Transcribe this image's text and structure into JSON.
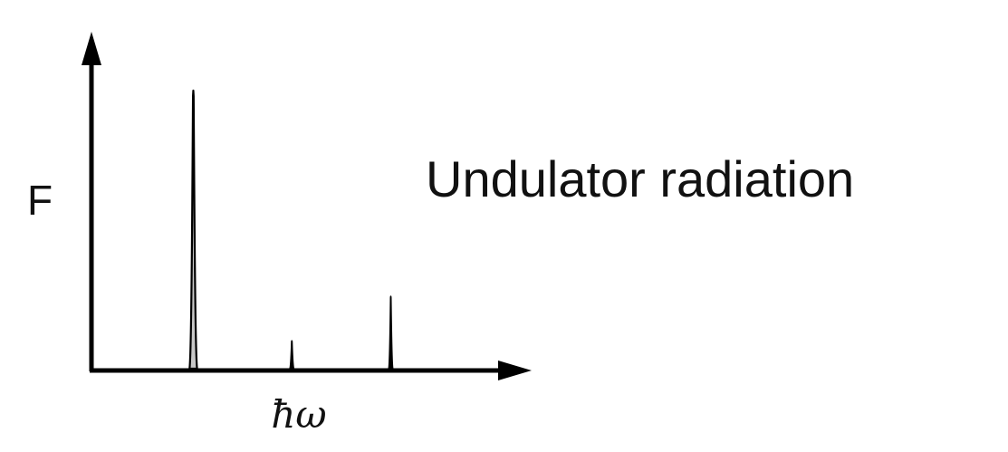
{
  "chart_data": {
    "type": "line",
    "title": "Undulator radiation",
    "ylabel": "F",
    "xlabel": "ħω",
    "xlim": [
      0,
      10
    ],
    "ylim": [
      0,
      10
    ],
    "peaks": [
      {
        "harmonic": 1,
        "x": 2.45,
        "y": 10.0,
        "width": 0.13,
        "fill": "#c8c8c8"
      },
      {
        "harmonic": 2,
        "x": 4.82,
        "y": 1.0,
        "width": 0.05,
        "fill": "#000000"
      },
      {
        "harmonic": 3,
        "x": 7.2,
        "y": 2.6,
        "width": 0.05,
        "fill": "#000000"
      }
    ],
    "grid": false,
    "colors": {
      "axis": "#000000",
      "first_peak_fill": "#c8c8c8",
      "peak_outline": "#000000"
    }
  }
}
